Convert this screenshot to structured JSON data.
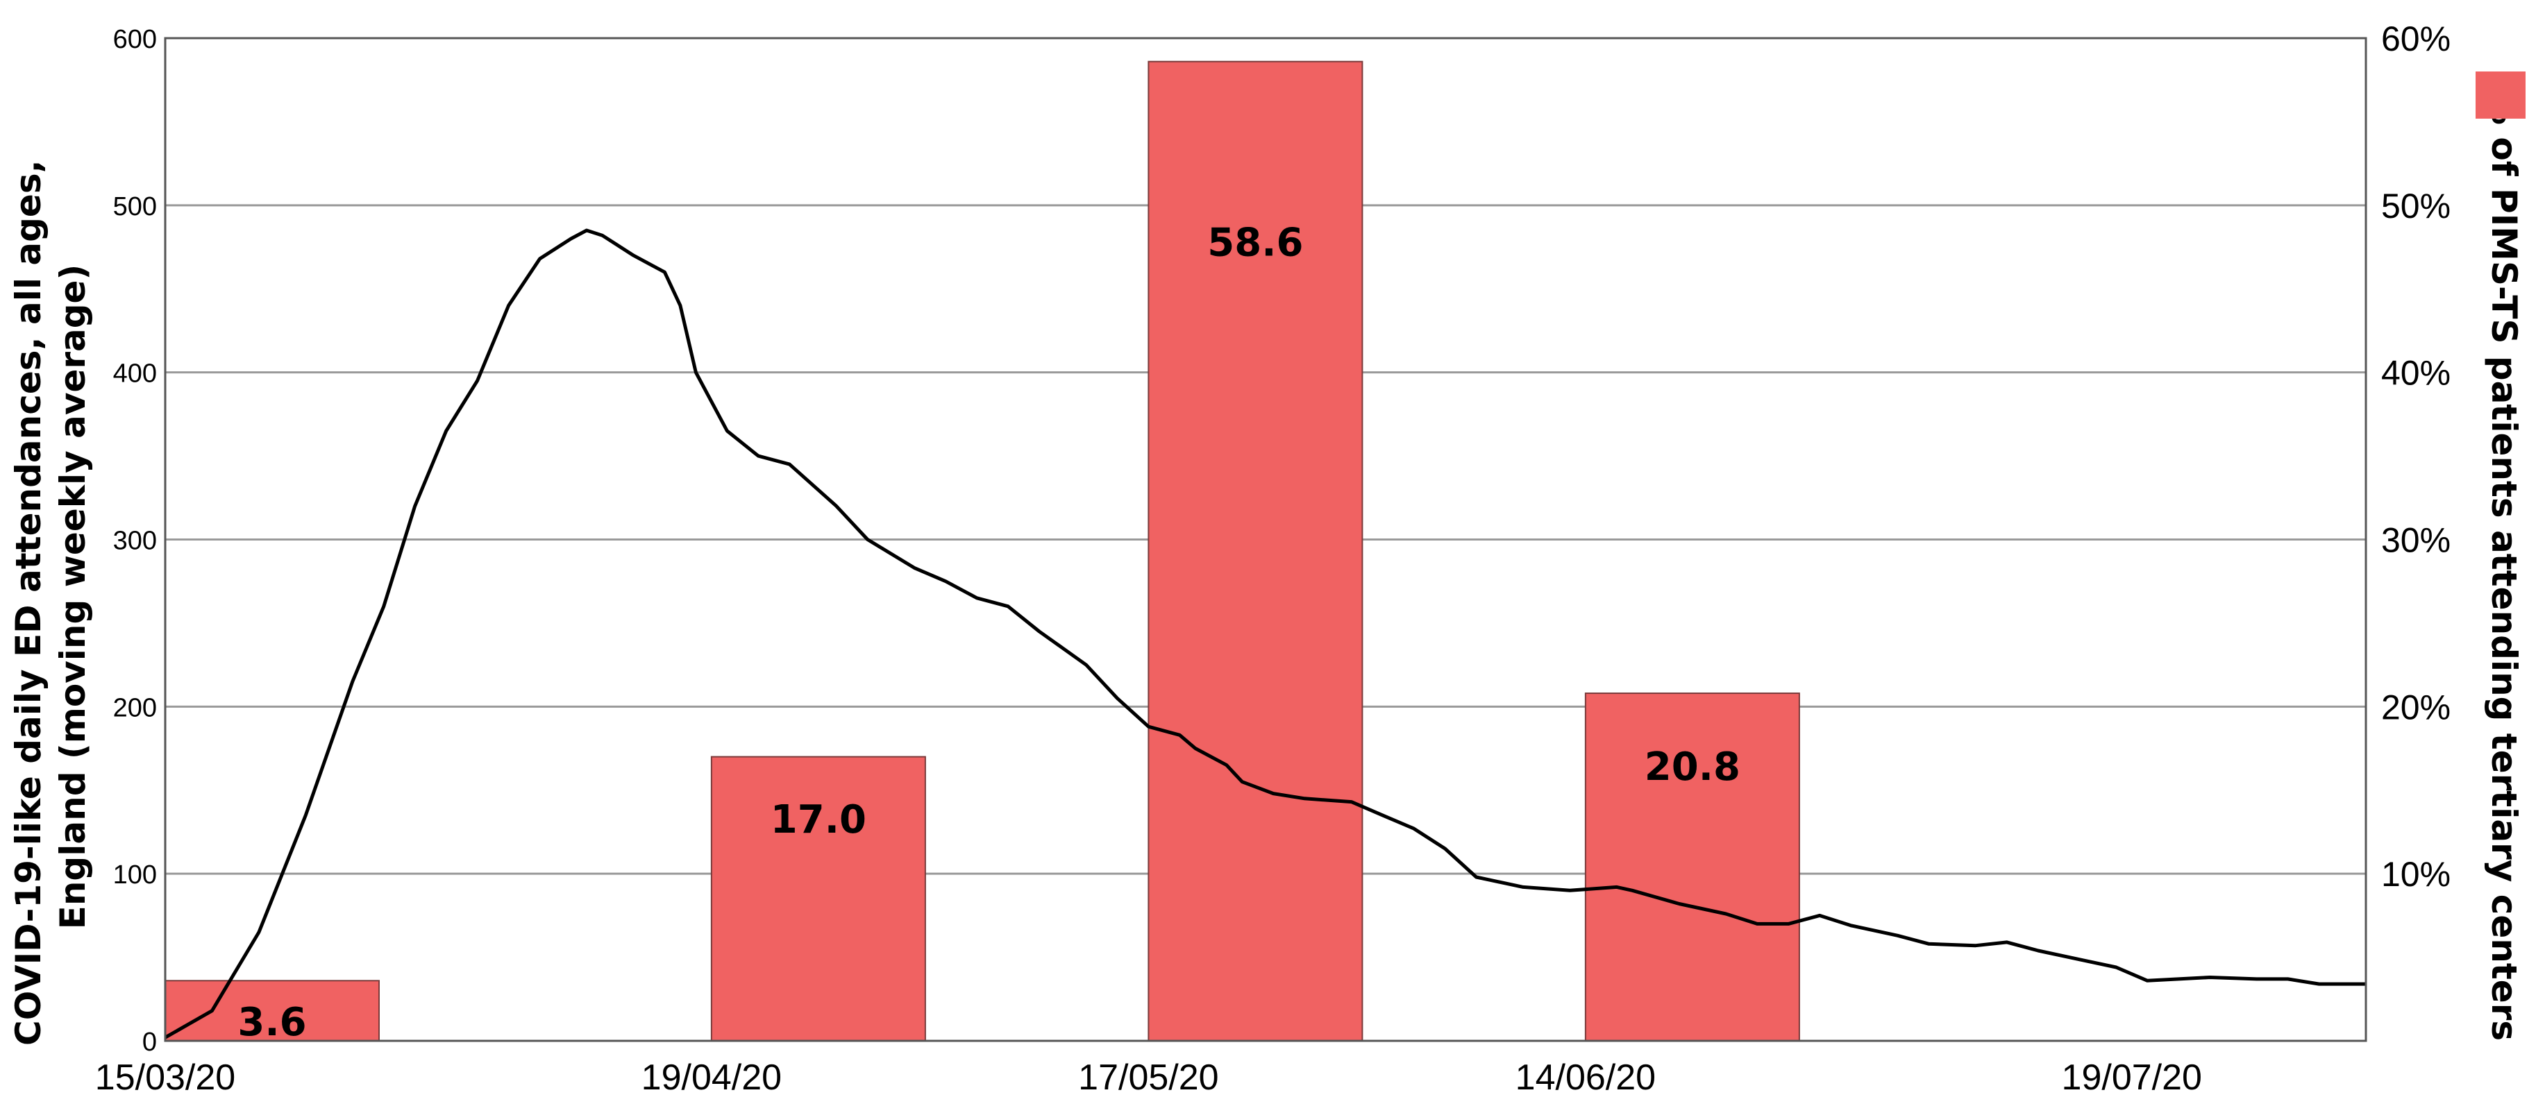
{
  "chart_data": {
    "type": "bar+line",
    "title": "",
    "x_tick_labels": [
      "15/03/20",
      "19/04/20",
      "17/05/20",
      "14/06/20",
      "19/07/20"
    ],
    "y_left": {
      "label_lines": [
        "COVID-19-like daily ED attendances, all ages,",
        "England (moving weekly average)"
      ],
      "ylim": [
        0,
        600
      ],
      "ticks": [
        "0",
        "100",
        "200",
        "300",
        "400",
        "500",
        "600"
      ]
    },
    "y_right": {
      "label": "% of PIMS-TS patients attending tertiary centers",
      "ylim": [
        0,
        60
      ],
      "ticks": [
        "10%",
        "20%",
        "30%",
        "40%",
        "50%",
        "60%"
      ]
    },
    "legend": {
      "position": "top-right",
      "swatch_color": "#f06262"
    },
    "colors": {
      "bar": "#f06262",
      "line": "#000000",
      "grid": "#999999"
    },
    "bars": {
      "axis": "right",
      "x": [
        "15/03/20",
        "19/04/20",
        "17/05/20",
        "14/06/20"
      ],
      "labels": [
        "3.6",
        "17.0",
        "58.6",
        "20.8"
      ],
      "values": [
        3.6,
        17.0,
        58.6,
        20.8
      ]
    },
    "line_series": {
      "axis": "left",
      "points": [
        [
          "2020-03-15",
          2
        ],
        [
          "2020-03-18",
          18
        ],
        [
          "2020-03-21",
          65
        ],
        [
          "2020-03-24",
          135
        ],
        [
          "2020-03-27",
          215
        ],
        [
          "2020-03-29",
          260
        ],
        [
          "2020-03-31",
          320
        ],
        [
          "2020-04-02",
          365
        ],
        [
          "2020-04-04",
          395
        ],
        [
          "2020-04-06",
          440
        ],
        [
          "2020-04-08",
          468
        ],
        [
          "2020-04-10",
          480
        ],
        [
          "2020-04-11",
          485
        ],
        [
          "2020-04-12",
          482
        ],
        [
          "2020-04-14",
          470
        ],
        [
          "2020-04-16",
          460
        ],
        [
          "2020-04-17",
          440
        ],
        [
          "2020-04-18",
          400
        ],
        [
          "2020-04-20",
          365
        ],
        [
          "2020-04-22",
          350
        ],
        [
          "2020-04-24",
          345
        ],
        [
          "2020-04-27",
          320
        ],
        [
          "2020-04-29",
          300
        ],
        [
          "2020-05-02",
          283
        ],
        [
          "2020-05-04",
          275
        ],
        [
          "2020-05-06",
          265
        ],
        [
          "2020-05-08",
          260
        ],
        [
          "2020-05-10",
          245
        ],
        [
          "2020-05-13",
          225
        ],
        [
          "2020-05-15",
          205
        ],
        [
          "2020-05-17",
          188
        ],
        [
          "2020-05-19",
          183
        ],
        [
          "2020-05-20",
          175
        ],
        [
          "2020-05-22",
          165
        ],
        [
          "2020-05-23",
          155
        ],
        [
          "2020-05-25",
          148
        ],
        [
          "2020-05-27",
          145
        ],
        [
          "2020-05-30",
          143
        ],
        [
          "2020-06-01",
          135
        ],
        [
          "2020-06-03",
          127
        ],
        [
          "2020-06-05",
          115
        ],
        [
          "2020-06-07",
          98
        ],
        [
          "2020-06-10",
          92
        ],
        [
          "2020-06-13",
          90
        ],
        [
          "2020-06-16",
          92
        ],
        [
          "2020-06-17",
          90
        ],
        [
          "2020-06-20",
          82
        ],
        [
          "2020-06-23",
          76
        ],
        [
          "2020-06-25",
          70
        ],
        [
          "2020-06-27",
          70
        ],
        [
          "2020-06-29",
          75
        ],
        [
          "2020-07-01",
          69
        ],
        [
          "2020-07-04",
          63
        ],
        [
          "2020-07-06",
          58
        ],
        [
          "2020-07-09",
          57
        ],
        [
          "2020-07-11",
          59
        ],
        [
          "2020-07-13",
          54
        ],
        [
          "2020-07-16",
          48
        ],
        [
          "2020-07-18",
          44
        ],
        [
          "2020-07-20",
          36
        ],
        [
          "2020-07-22",
          37
        ],
        [
          "2020-07-24",
          38
        ],
        [
          "2020-07-27",
          37
        ],
        [
          "2020-07-29",
          37
        ],
        [
          "2020-07-31",
          34
        ],
        [
          "2020-08-03",
          34
        ]
      ]
    },
    "grid": true
  }
}
